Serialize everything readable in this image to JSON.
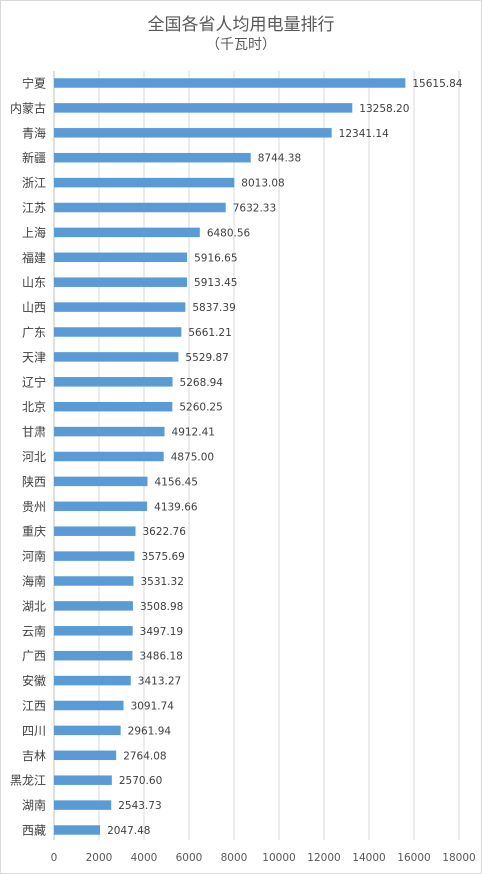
{
  "chart_data": {
    "type": "bar",
    "orientation": "horizontal",
    "title": "全国各省人均用电量排行",
    "subtitle": "（千瓦时）",
    "xlim": [
      0,
      18000
    ],
    "xticks": [
      0,
      2000,
      4000,
      6000,
      8000,
      10000,
      12000,
      14000,
      16000,
      18000
    ],
    "xtick_labels": [
      "0",
      "2000",
      "4000",
      "6000",
      "8000",
      "10000",
      "12000",
      "14000",
      "16000",
      "18000"
    ],
    "grid": "vertical",
    "bar_color": "#5b9bd5",
    "categories": [
      "宁夏",
      "内蒙古",
      "青海",
      "新疆",
      "浙江",
      "江苏",
      "上海",
      "福建",
      "山东",
      "山西",
      "广东",
      "天津",
      "辽宁",
      "北京",
      "甘肃",
      "河北",
      "陕西",
      "贵州",
      "重庆",
      "河南",
      "海南",
      "湖北",
      "云南",
      "广西",
      "安徽",
      "江西",
      "四川",
      "吉林",
      "黑龙江",
      "湖南",
      "西藏"
    ],
    "values": [
      15615.84,
      13258.2,
      12341.14,
      8744.38,
      8013.08,
      7632.33,
      6480.56,
      5916.65,
      5913.45,
      5837.39,
      5661.21,
      5529.87,
      5268.94,
      5260.25,
      4912.41,
      4875.0,
      4156.45,
      4139.66,
      3622.76,
      3575.69,
      3531.32,
      3508.98,
      3497.19,
      3486.18,
      3413.27,
      3091.74,
      2961.94,
      2764.08,
      2570.6,
      2543.73,
      2047.48
    ],
    "value_labels": [
      "15615.84",
      "13258.20",
      "12341.14",
      "8744.38",
      "8013.08",
      "7632.33",
      "6480.56",
      "5916.65",
      "5913.45",
      "5837.39",
      "5661.21",
      "5529.87",
      "5268.94",
      "5260.25",
      "4912.41",
      "4875.00",
      "4156.45",
      "4139.66",
      "3622.76",
      "3575.69",
      "3531.32",
      "3508.98",
      "3497.19",
      "3486.18",
      "3413.27",
      "3091.74",
      "2961.94",
      "2764.08",
      "2570.60",
      "2543.73",
      "2047.48"
    ]
  }
}
